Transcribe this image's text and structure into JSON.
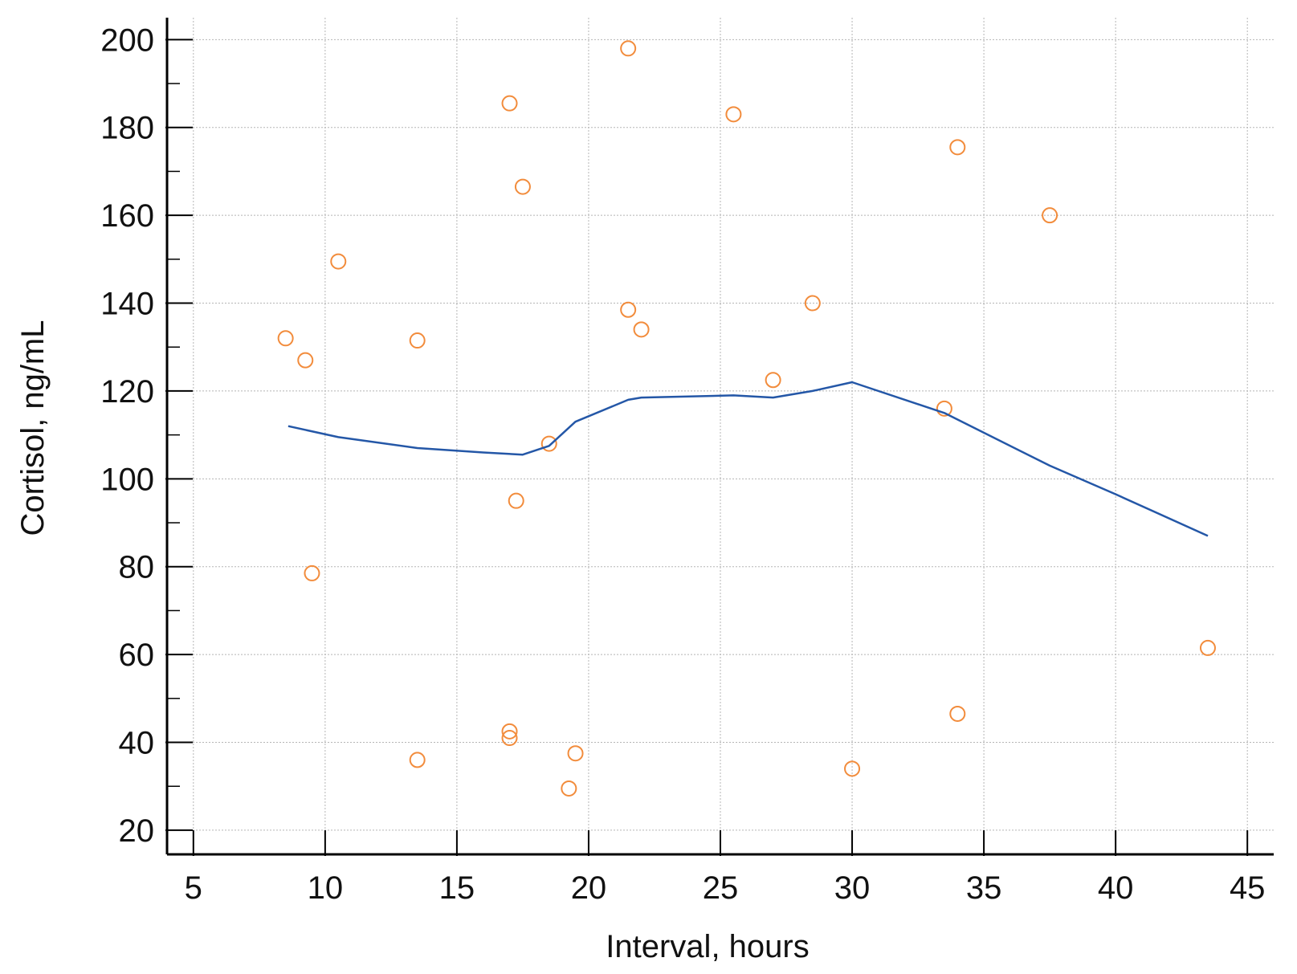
{
  "chart_data": {
    "type": "scatter",
    "title": "",
    "xlabel": "Interval, hours",
    "ylabel": "Cortisol, ng/mL",
    "xlim": [
      4,
      46
    ],
    "ylim": [
      14.5,
      205
    ],
    "x_ticks": [
      5,
      10,
      15,
      20,
      25,
      30,
      35,
      40,
      45
    ],
    "y_ticks": [
      20,
      40,
      60,
      80,
      100,
      120,
      140,
      160,
      180,
      200
    ],
    "x_tick_labels": [
      "5",
      "10",
      "15",
      "20",
      "25",
      "30",
      "35",
      "40",
      "45"
    ],
    "y_tick_labels": [
      "20",
      "40",
      "60",
      "80",
      "100",
      "120",
      "140",
      "160",
      "180",
      "200"
    ],
    "grid": true,
    "legend": "none",
    "series": [
      {
        "type": "scatter",
        "color": "#f28c3c",
        "marker": "open-circle",
        "points": [
          [
            8.5,
            132
          ],
          [
            9.25,
            127
          ],
          [
            9.5,
            78.5
          ],
          [
            10.5,
            149.5
          ],
          [
            13.5,
            131.5
          ],
          [
            13.5,
            36
          ],
          [
            17.0,
            185.5
          ],
          [
            17.5,
            166.5
          ],
          [
            17.25,
            95
          ],
          [
            17.0,
            42.5
          ],
          [
            17.0,
            41
          ],
          [
            18.5,
            108
          ],
          [
            19.5,
            37.5
          ],
          [
            19.25,
            29.5
          ],
          [
            21.5,
            198
          ],
          [
            21.5,
            138.5
          ],
          [
            22.0,
            134
          ],
          [
            25.5,
            183
          ],
          [
            27.0,
            122.5
          ],
          [
            28.5,
            140
          ],
          [
            30.0,
            34
          ],
          [
            33.5,
            116
          ],
          [
            34.0,
            175.5
          ],
          [
            34.0,
            46.5
          ],
          [
            37.5,
            160
          ],
          [
            43.5,
            61.5
          ]
        ]
      },
      {
        "type": "line",
        "color": "#2457a7",
        "points": [
          [
            8.6,
            112
          ],
          [
            10.5,
            109.5
          ],
          [
            13.5,
            107
          ],
          [
            16.0,
            106
          ],
          [
            17.5,
            105.5
          ],
          [
            18.5,
            107.5
          ],
          [
            19.5,
            113
          ],
          [
            21.5,
            118
          ],
          [
            22.0,
            118.5
          ],
          [
            25.5,
            119
          ],
          [
            27.0,
            118.5
          ],
          [
            28.5,
            120
          ],
          [
            30.0,
            122
          ],
          [
            33.5,
            115
          ],
          [
            37.5,
            103
          ],
          [
            40.0,
            96.5
          ],
          [
            43.5,
            87
          ]
        ]
      }
    ]
  }
}
